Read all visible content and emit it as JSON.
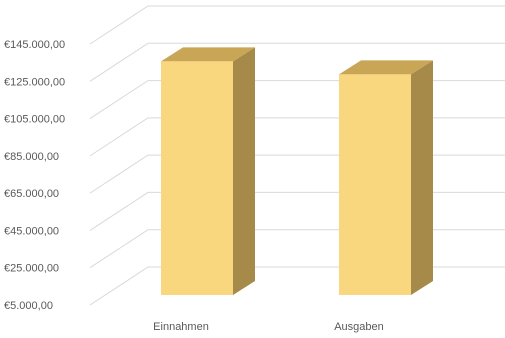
{
  "chart_data": {
    "type": "bar",
    "style": "3d-column",
    "title": "",
    "xlabel": "",
    "ylabel": "",
    "categories": [
      "Einnahmen",
      "Ausgaben"
    ],
    "values": [
      140000,
      133000
    ],
    "ylim": [
      5000,
      145000
    ],
    "ticks": [
      {
        "value": 5000,
        "label": "€5.000,00"
      },
      {
        "value": 25000,
        "label": "€25.000,00"
      },
      {
        "value": 45000,
        "label": "€45.000,00"
      },
      {
        "value": 65000,
        "label": "€65.000,00"
      },
      {
        "value": 85000,
        "label": "€85.000,00"
      },
      {
        "value": 105000,
        "label": "€105.000,00"
      },
      {
        "value": 125000,
        "label": "€125.000,00"
      },
      {
        "value": 145000,
        "label": "€145.000,00"
      }
    ],
    "grid": true,
    "legend": "none",
    "colors": {
      "front": "#f9d77e",
      "top": "#c9a556",
      "side": "#a58a49",
      "grid": "#d9d9d9",
      "text": "#595959"
    }
  }
}
